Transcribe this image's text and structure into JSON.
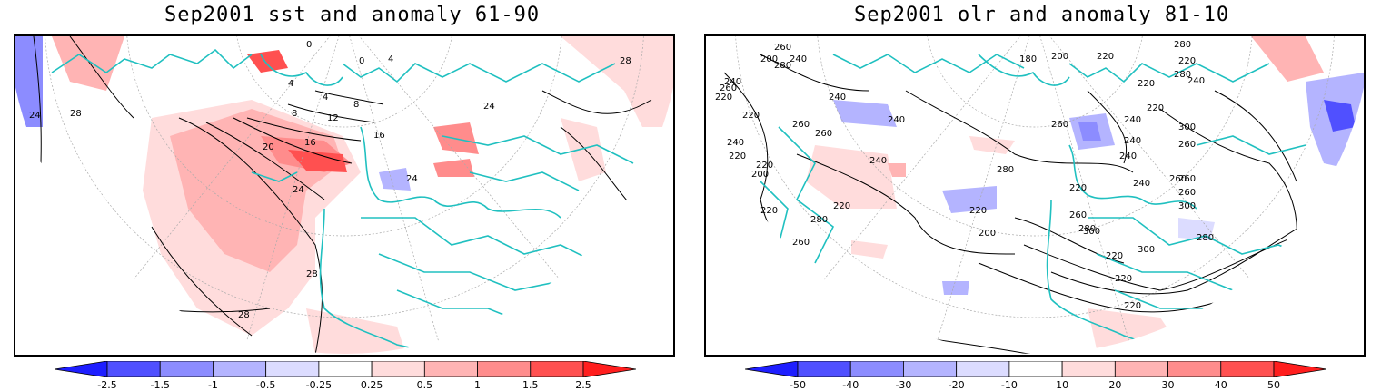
{
  "panels": [
    {
      "id": "sst",
      "title": "Sep2001 sst and anomaly 61-90",
      "contour_labels": [
        "28",
        "24",
        "24",
        "20",
        "16",
        "12",
        "8",
        "8",
        "4",
        "4",
        "4",
        "0",
        "0",
        "16",
        "24",
        "28",
        "28",
        "28",
        "24"
      ],
      "colorbar": {
        "levels": [
          "-2.5",
          "-1.5",
          "-1",
          "-0.5",
          "-0.25",
          "0.25",
          "0.5",
          "1",
          "1.5",
          "2.5"
        ],
        "colors": [
          "#1e1eff",
          "#5050ff",
          "#8c8cff",
          "#b4b4ff",
          "#dcdcff",
          "#ffffff",
          "#ffdcdc",
          "#ffb4b4",
          "#ff8c8c",
          "#ff5050",
          "#ff1e1e"
        ]
      }
    },
    {
      "id": "olr",
      "title": "Sep2001 olr and anomaly 81-10",
      "contour_labels": [
        "260",
        "240",
        "200",
        "280",
        "220",
        "220",
        "240",
        "180",
        "220",
        "280",
        "220",
        "280",
        "220",
        "240",
        "220",
        "200",
        "260",
        "240",
        "260",
        "260",
        "240",
        "240",
        "240",
        "240",
        "220",
        "260",
        "280",
        "300",
        "300",
        "300",
        "260",
        "240",
        "220",
        "280",
        "260",
        "220",
        "220",
        "240",
        "200",
        "220",
        "260",
        "240",
        "220",
        "200",
        "260",
        "280",
        "260",
        "260",
        "300",
        "280",
        "220",
        "220",
        "220"
      ],
      "colorbar": {
        "levels": [
          "-50",
          "-40",
          "-30",
          "-20",
          "-10",
          "10",
          "20",
          "30",
          "40",
          "50"
        ],
        "colors": [
          "#1e1eff",
          "#5050ff",
          "#8c8cff",
          "#b4b4ff",
          "#dcdcff",
          "#ffffff",
          "#ffdcdc",
          "#ffb4b4",
          "#ff8c8c",
          "#ff5050",
          "#ff1e1e"
        ]
      }
    }
  ]
}
